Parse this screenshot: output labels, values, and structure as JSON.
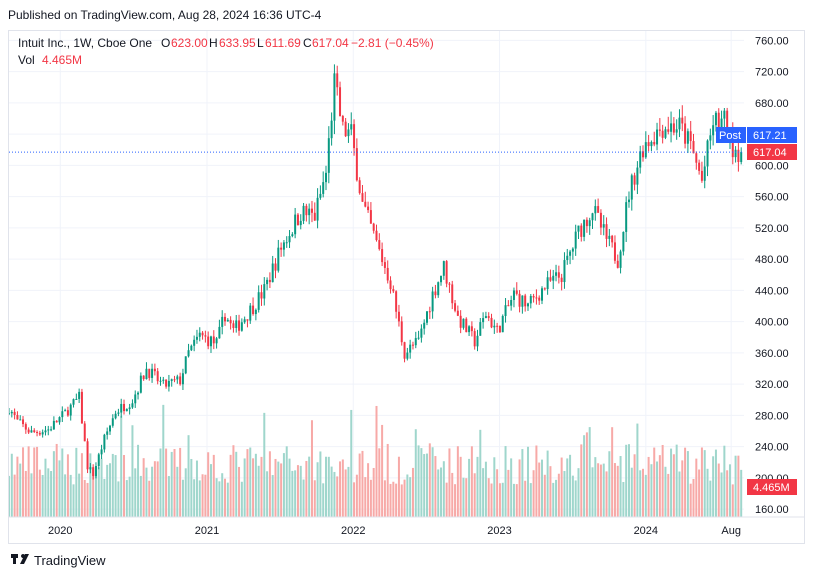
{
  "published_text": "Published on TradingView.com, Aug 28, 2024 16:36 UTC-4",
  "legend": {
    "symbol": "Intuit Inc., 1W, Cboe One",
    "o_label": "O",
    "o_value": "623.00",
    "h_label": "H",
    "h_value": "633.95",
    "l_label": "L",
    "l_value": "611.69",
    "c_label": "C",
    "c_value": "617.04",
    "change": "−2.81 (−0.45%)",
    "vol_label": "Vol",
    "vol_value": "4.465M"
  },
  "badges": {
    "post_label": "Post",
    "post_value": "617.21",
    "last_price": "617.04",
    "volume": "4.465M"
  },
  "footer_brand": "TradingView",
  "colors": {
    "up": "#089981",
    "down": "#f23645",
    "post_badge": "#2962ff",
    "grid": "#f0f3fa",
    "up_volume": "#9fd6cc",
    "down_volume": "#f7a9a7"
  },
  "chart_data": {
    "type": "candlestick",
    "timeframe": "1W",
    "title": "Intuit Inc., 1W, Cboe One",
    "y_ticks": [
      "760.00",
      "720.00",
      "680.00",
      "640.00",
      "600.00",
      "560.00",
      "520.00",
      "480.00",
      "440.00",
      "400.00",
      "360.00",
      "320.00",
      "280.00",
      "240.00",
      "200.00",
      "160.00"
    ],
    "ylim": [
      150,
      772
    ],
    "x_ticks": [
      "2020",
      "2021",
      "2022",
      "2023",
      "2024",
      "Aug"
    ],
    "x_tick_dates": [
      "2020-01-01",
      "2021-01-01",
      "2022-01-01",
      "2023-01-01",
      "2024-01-01",
      "2024-08-01"
    ],
    "x_range": [
      "2019-08-26",
      "2024-09-02"
    ],
    "last_close": 617.04,
    "post_price": 617.21,
    "price_path": [
      [
        "2019-08-26",
        290
      ],
      [
        "2019-09-16",
        272
      ],
      [
        "2019-10-21",
        258
      ],
      [
        "2019-12-02",
        262
      ],
      [
        "2020-01-13",
        283
      ],
      [
        "2020-02-17",
        303
      ],
      [
        "2020-03-09",
        215
      ],
      [
        "2020-03-23",
        205
      ],
      [
        "2020-04-20",
        250
      ],
      [
        "2020-05-18",
        285
      ],
      [
        "2020-06-29",
        300
      ],
      [
        "2020-08-03",
        340
      ],
      [
        "2020-09-14",
        318
      ],
      [
        "2020-10-26",
        325
      ],
      [
        "2020-11-16",
        360
      ],
      [
        "2020-12-14",
        382
      ],
      [
        "2021-01-25",
        372
      ],
      [
        "2021-02-15",
        410
      ],
      [
        "2021-03-08",
        388
      ],
      [
        "2021-04-19",
        415
      ],
      [
        "2021-05-24",
        440
      ],
      [
        "2021-07-05",
        495
      ],
      [
        "2021-08-23",
        540
      ],
      [
        "2021-09-27",
        535
      ],
      [
        "2021-10-25",
        590
      ],
      [
        "2021-11-15",
        705
      ],
      [
        "2021-12-06",
        645
      ],
      [
        "2021-12-27",
        640
      ],
      [
        "2022-01-24",
        550
      ],
      [
        "2022-02-28",
        500
      ],
      [
        "2022-04-04",
        450
      ],
      [
        "2022-05-09",
        360
      ],
      [
        "2022-06-13",
        375
      ],
      [
        "2022-07-18",
        435
      ],
      [
        "2022-08-15",
        470
      ],
      [
        "2022-09-19",
        405
      ],
      [
        "2022-10-31",
        375
      ],
      [
        "2022-11-28",
        410
      ],
      [
        "2022-12-26",
        388
      ],
      [
        "2023-02-06",
        435
      ],
      [
        "2023-03-13",
        420
      ],
      [
        "2023-04-24",
        445
      ],
      [
        "2023-06-05",
        460
      ],
      [
        "2023-07-17",
        515
      ],
      [
        "2023-08-21",
        545
      ],
      [
        "2023-09-25",
        505
      ],
      [
        "2023-10-23",
        480
      ],
      [
        "2023-11-20",
        565
      ],
      [
        "2023-12-25",
        625
      ],
      [
        "2024-02-12",
        650
      ],
      [
        "2024-03-25",
        650
      ],
      [
        "2024-04-22",
        625
      ],
      [
        "2024-05-20",
        580
      ],
      [
        "2024-06-17",
        655
      ],
      [
        "2024-07-15",
        655
      ],
      [
        "2024-08-05",
        625
      ],
      [
        "2024-08-26",
        617
      ]
    ],
    "volume_scale_max_m": 30
  }
}
